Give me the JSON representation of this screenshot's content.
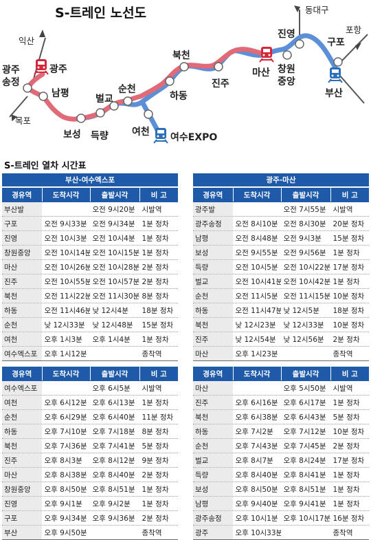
{
  "map": {
    "title": "S-트레인 노선도",
    "stations": {
      "gwangju_songjeong": [
        "광주",
        "송정"
      ],
      "gwangju": "광주",
      "nampyeong": "남평",
      "boseong": "보성",
      "deungnyang": "득량",
      "beolgyo": "벌교",
      "suncheon": "순천",
      "yeocheon": "여천",
      "yeosu_expo": "여수EXPO",
      "hadong": "하동",
      "bukcheon": "북천",
      "jinju": "진주",
      "masan": "마산",
      "changwon_jungang": [
        "창원",
        "중앙"
      ],
      "jinyeong": "진영",
      "gupo": "구포",
      "busan": "부산"
    },
    "directions": {
      "iksan": "익산",
      "mokpo": "목포",
      "dongdaegu": "동대구",
      "pohang": "포항"
    },
    "colors": {
      "busan_line": "#5b8fd6",
      "gwangju_line": "#e06a78",
      "busan_train": "#2a6fb7",
      "gwangju_train": "#d6263a"
    }
  },
  "timetable_title": "S-트레인 열차 시간표",
  "headers": [
    "경유역",
    "도착시각",
    "출발시각",
    "비  고"
  ],
  "tables": [
    {
      "caption": "부산-여수엑스포",
      "rows": [
        [
          "부산발",
          "",
          "오전 9시20분",
          "시발역"
        ],
        [
          "구포",
          "오전 9시33분",
          "오전 9시34분",
          "1분 정차"
        ],
        [
          "진영",
          "오전 10시3분",
          "오전 10시4분",
          "1분 정차"
        ],
        [
          "창원중앙",
          "오전 10시14분",
          "오전 10시15분",
          "1분 정차"
        ],
        [
          "마산",
          "오전 10시26분",
          "오전 10시28분",
          "2분 정차"
        ],
        [
          "진주",
          "오전 10시55분",
          "오전 10시57분",
          "2분 정차"
        ],
        [
          "북천",
          "오전 11시22분",
          "오전 11시30분",
          "8분 정차"
        ],
        [
          "하동",
          "오전 11시46분",
          "낮 12시4분",
          "18분 정차"
        ],
        [
          "순천",
          "낮 12시33분",
          "낮 12시48분",
          "15분 정차"
        ],
        [
          "여천",
          "오후 1시3분",
          "오후 1시4분",
          "1분 정차"
        ],
        [
          "여수엑스포",
          "오후 1시12분",
          "",
          "종착역"
        ]
      ]
    },
    {
      "caption": "광주-마산",
      "rows": [
        [
          "광주발",
          "",
          "오전 7시55분",
          "시발역"
        ],
        [
          "광주송정",
          "오전 8시10분",
          "오전 8시30분",
          "20분 정차"
        ],
        [
          "남평",
          "오전 8시48분",
          "오전 9시3분",
          "15분 정차"
        ],
        [
          "보성",
          "오전 9시55분",
          "오전 9시56분",
          "1분 정차"
        ],
        [
          "득량",
          "오전 10시5분",
          "오전 10시22분",
          "17분 정차"
        ],
        [
          "벌교",
          "오전 10시41분",
          "오전 10시42분",
          "1분 정차"
        ],
        [
          "순천",
          "오전 11시5분",
          "오전 11시15분",
          "10분 정차"
        ],
        [
          "하동",
          "오전 11시47분",
          "낮 12시5분",
          "18분 정차"
        ],
        [
          "북천",
          "낮 12시23분",
          "낮 12시33분",
          "10분 정차"
        ],
        [
          "진주",
          "낮 12시54분",
          "낮 12시56분",
          "2분 정차"
        ],
        [
          "마산",
          "오후 1시23분",
          "",
          "종착역"
        ]
      ]
    },
    {
      "caption": "",
      "rows": [
        [
          "여수엑스포",
          "",
          "오후 6시5분",
          "시발역"
        ],
        [
          "여천",
          "오후 6시12분",
          "오후 6시13분",
          "1분 정차"
        ],
        [
          "순천",
          "오후 6시29분",
          "오후 6시40분",
          "11분 정차"
        ],
        [
          "하동",
          "오후 7시10분",
          "오후 7시18분",
          "8분 정차"
        ],
        [
          "북천",
          "오후 7시36분",
          "오후 7시41분",
          "5분 정차"
        ],
        [
          "진주",
          "오후 8시3분",
          "오후 8시12분",
          "9분 정차"
        ],
        [
          "마산",
          "오후 8시38분",
          "오후 8시40분",
          "2분 정차"
        ],
        [
          "창원중앙",
          "오후 8시50분",
          "오후 8시51분",
          "1분 정차"
        ],
        [
          "진영",
          "오후 9시1분",
          "오후 9시2분",
          "1분 정차"
        ],
        [
          "구포",
          "오후 9시34분",
          "오후 9시36분",
          "2분 정차"
        ],
        [
          "부산",
          "오후 9시50분",
          "",
          "종착역"
        ]
      ]
    },
    {
      "caption": "",
      "rows": [
        [
          "마산",
          "",
          "오후 5시50분",
          "시발역"
        ],
        [
          "진주",
          "오후 6시16분",
          "오후 6시17분",
          "1분 정차"
        ],
        [
          "북천",
          "오후 6시38분",
          "오후 6시43분",
          "5분 정차"
        ],
        [
          "하동",
          "오후 7시2분",
          "오후 7시12분",
          "10분 정차"
        ],
        [
          "순천",
          "오후 7시43분",
          "오후 7시45분",
          "2분 정차"
        ],
        [
          "벌교",
          "오후 8시7분",
          "오후 8시24분",
          "17분 정차"
        ],
        [
          "득량",
          "오후 8시40분",
          "오후 8시41분",
          "1분 정차"
        ],
        [
          "보성",
          "오후 8시50분",
          "오후 8시51분",
          "1분 정차"
        ],
        [
          "남평",
          "오후 9시40분",
          "오후 9시41분",
          "1분 정차"
        ],
        [
          "광주송정",
          "오후 10시1분",
          "오후 10시17분",
          "16분 정차"
        ],
        [
          "광주",
          "오후 10시33분",
          "",
          "종착역"
        ]
      ]
    }
  ]
}
